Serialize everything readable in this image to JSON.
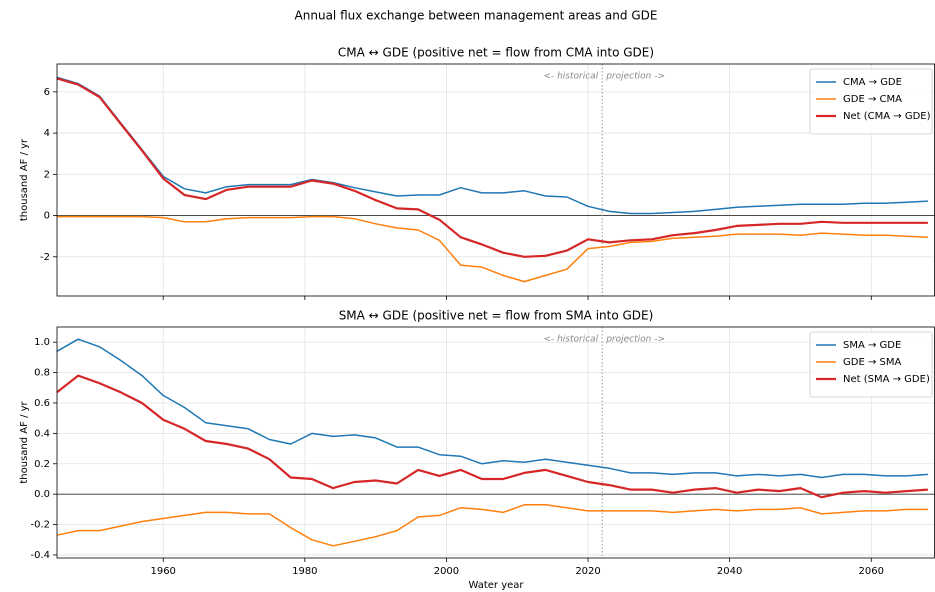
{
  "title": "Annual flux exchange between management areas and GDE",
  "chart_data": [
    {
      "type": "line",
      "title": "CMA ↔ GDE  (positive net = flow from CMA into GDE)",
      "ylabel": "thousand AF / yr",
      "show_xtick_labels": false,
      "grid": true,
      "legend": "upper right",
      "hline": 0,
      "vline": 2022,
      "annotations": [
        "<- historical",
        "projection ->"
      ],
      "xlim": [
        1945,
        2069
      ],
      "xticks": [
        1960,
        1980,
        2000,
        2020,
        2040,
        2060
      ],
      "ylim": [
        -3.9,
        7.35
      ],
      "yticks": [
        -2,
        0,
        2,
        4,
        6
      ],
      "x": [
        1945,
        1948,
        1951,
        1954,
        1957,
        1960,
        1963,
        1966,
        1969,
        1972,
        1975,
        1978,
        1981,
        1984,
        1987,
        1990,
        1993,
        1996,
        1999,
        2002,
        2005,
        2008,
        2011,
        2014,
        2017,
        2020,
        2023,
        2026,
        2029,
        2032,
        2035,
        2038,
        2041,
        2044,
        2047,
        2050,
        2053,
        2056,
        2059,
        2062,
        2065,
        2068
      ],
      "series": [
        {
          "name": "CMA → GDE",
          "color": "#1f77b4",
          "width": 1.5,
          "values": [
            6.7,
            6.4,
            5.8,
            4.5,
            3.2,
            1.9,
            1.3,
            1.1,
            1.4,
            1.5,
            1.5,
            1.5,
            1.75,
            1.6,
            1.35,
            1.15,
            0.95,
            1.0,
            1.0,
            1.35,
            1.1,
            1.1,
            1.2,
            0.95,
            0.9,
            0.45,
            0.2,
            0.1,
            0.1,
            0.15,
            0.2,
            0.3,
            0.4,
            0.45,
            0.5,
            0.55,
            0.55,
            0.55,
            0.6,
            0.6,
            0.65,
            0.7
          ]
        },
        {
          "name": "GDE → CMA",
          "color": "#ff7f0e",
          "width": 1.5,
          "values": [
            -0.05,
            -0.05,
            -0.05,
            -0.05,
            -0.05,
            -0.1,
            -0.3,
            -0.3,
            -0.15,
            -0.1,
            -0.1,
            -0.1,
            -0.05,
            -0.05,
            -0.15,
            -0.4,
            -0.6,
            -0.7,
            -1.2,
            -2.4,
            -2.5,
            -2.9,
            -3.2,
            -2.9,
            -2.6,
            -1.6,
            -1.5,
            -1.3,
            -1.25,
            -1.1,
            -1.05,
            -1.0,
            -0.9,
            -0.9,
            -0.9,
            -0.95,
            -0.85,
            -0.9,
            -0.95,
            -0.95,
            -1.0,
            -1.05
          ]
        },
        {
          "name": "Net (CMA → GDE)",
          "color": "#d62728",
          "width": 2.2,
          "values": [
            6.65,
            6.35,
            5.75,
            4.45,
            3.15,
            1.8,
            1.0,
            0.8,
            1.25,
            1.4,
            1.4,
            1.4,
            1.7,
            1.55,
            1.2,
            0.75,
            0.35,
            0.3,
            -0.2,
            -1.05,
            -1.4,
            -1.8,
            -2.0,
            -1.95,
            -1.7,
            -1.15,
            -1.3,
            -1.2,
            -1.15,
            -0.95,
            -0.85,
            -0.7,
            -0.5,
            -0.45,
            -0.4,
            -0.4,
            -0.3,
            -0.35,
            -0.35,
            -0.35,
            -0.35,
            -0.35
          ]
        }
      ]
    },
    {
      "type": "line",
      "title": "SMA ↔ GDE  (positive net = flow from SMA into GDE)",
      "ylabel": "thousand AF / yr",
      "xlabel": "Water year",
      "show_xtick_labels": true,
      "grid": true,
      "legend": "upper right",
      "hline": 0,
      "vline": 2022,
      "annotations": [
        "<- historical",
        "projection ->"
      ],
      "xlim": [
        1945,
        2069
      ],
      "xticks": [
        1960,
        1980,
        2000,
        2020,
        2040,
        2060
      ],
      "ylim": [
        -0.42,
        1.1
      ],
      "yticks": [
        -0.4,
        -0.2,
        {
          "value": 0,
          "label": "0.0"
        },
        0.2,
        0.4,
        0.6,
        0.8,
        {
          "value": 1,
          "label": "1.0"
        }
      ],
      "x": [
        1945,
        1948,
        1951,
        1954,
        1957,
        1960,
        1963,
        1966,
        1969,
        1972,
        1975,
        1978,
        1981,
        1984,
        1987,
        1990,
        1993,
        1996,
        1999,
        2002,
        2005,
        2008,
        2011,
        2014,
        2017,
        2020,
        2023,
        2026,
        2029,
        2032,
        2035,
        2038,
        2041,
        2044,
        2047,
        2050,
        2053,
        2056,
        2059,
        2062,
        2065,
        2068
      ],
      "series": [
        {
          "name": "SMA → GDE",
          "color": "#1f77b4",
          "width": 1.5,
          "values": [
            0.94,
            1.02,
            0.97,
            0.88,
            0.78,
            0.65,
            0.57,
            0.47,
            0.45,
            0.43,
            0.36,
            0.33,
            0.4,
            0.38,
            0.39,
            0.37,
            0.31,
            0.31,
            0.26,
            0.25,
            0.2,
            0.22,
            0.21,
            0.23,
            0.21,
            0.19,
            0.17,
            0.14,
            0.14,
            0.13,
            0.14,
            0.14,
            0.12,
            0.13,
            0.12,
            0.13,
            0.11,
            0.13,
            0.13,
            0.12,
            0.12,
            0.13
          ]
        },
        {
          "name": "GDE → SMA",
          "color": "#ff7f0e",
          "width": 1.5,
          "values": [
            -0.27,
            -0.24,
            -0.24,
            -0.21,
            -0.18,
            -0.16,
            -0.14,
            -0.12,
            -0.12,
            -0.13,
            -0.13,
            -0.22,
            -0.3,
            -0.34,
            -0.31,
            -0.28,
            -0.24,
            -0.15,
            -0.14,
            -0.09,
            -0.1,
            -0.12,
            -0.07,
            -0.07,
            -0.09,
            -0.11,
            -0.11,
            -0.11,
            -0.11,
            -0.12,
            -0.11,
            -0.1,
            -0.11,
            -0.1,
            -0.1,
            -0.09,
            -0.13,
            -0.12,
            -0.11,
            -0.11,
            -0.1,
            -0.1
          ]
        },
        {
          "name": "Net (SMA → GDE)",
          "color": "#d62728",
          "width": 2.2,
          "values": [
            0.67,
            0.78,
            0.73,
            0.67,
            0.6,
            0.49,
            0.43,
            0.35,
            0.33,
            0.3,
            0.23,
            0.11,
            0.1,
            0.04,
            0.08,
            0.09,
            0.07,
            0.16,
            0.12,
            0.16,
            0.1,
            0.1,
            0.14,
            0.16,
            0.12,
            0.08,
            0.06,
            0.03,
            0.03,
            0.01,
            0.03,
            0.04,
            0.01,
            0.03,
            0.02,
            0.04,
            -0.02,
            0.01,
            0.02,
            0.01,
            0.02,
            0.03
          ]
        }
      ]
    }
  ]
}
